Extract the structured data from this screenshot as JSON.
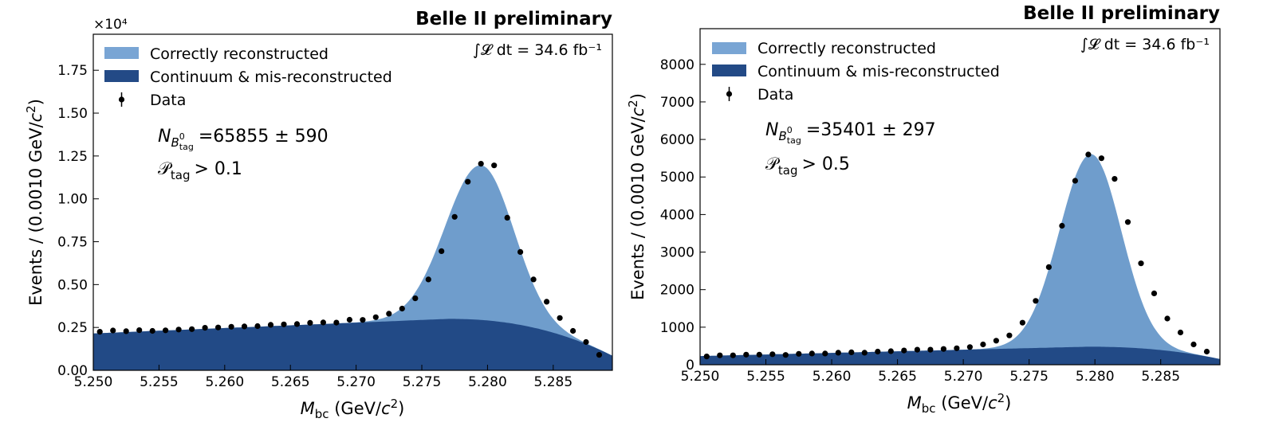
{
  "chart_data": [
    {
      "type": "area",
      "title": "Belle II preliminary",
      "luminosity_text": "∫𝓛 dt = 34.6 fb⁻¹",
      "xlabel": "M_bc (GeV/c²)",
      "ylabel": "Events / (0.0010 GeV/c²)",
      "xlim": [
        5.25,
        5.2895
      ],
      "ylim": [
        0,
        19600
      ],
      "y_tick_values": [
        0,
        2500,
        5000,
        7500,
        10000,
        12500,
        15000,
        17500
      ],
      "y_tick_labels": [
        "0.00",
        "0.25",
        "0.50",
        "0.75",
        "1.00",
        "1.25",
        "1.50",
        "1.75"
      ],
      "y_multiplier_label": "×10⁴",
      "x_tick_values": [
        5.25,
        5.255,
        5.26,
        5.265,
        5.27,
        5.275,
        5.28,
        5.285
      ],
      "x_tick_labels": [
        "5.250",
        "5.255",
        "5.260",
        "5.265",
        "5.270",
        "5.275",
        "5.280",
        "5.285"
      ],
      "legend": [
        "Correctly reconstructed",
        "Continuum & mis-reconstructed",
        "Data"
      ],
      "annotations": {
        "yield_symbol": "N",
        "yield_sub": "B",
        "yield_sup": "0",
        "yield_subsub": "tag",
        "yield_value": "=65855 ± 590",
        "cut_symbol": "𝒫",
        "cut_sub": "tag",
        "cut_value": "> 0.1"
      },
      "background_model": {
        "start": 2150,
        "peak": 3000,
        "peak_x": 5.277,
        "drop_scale": 2150
      },
      "signal_model": {
        "amplitude": 9020,
        "mean": 5.2795,
        "sigma_left": 0.0027,
        "sigma_right": 0.0025
      },
      "series": [
        {
          "name": "Data",
          "x": [
            5.2505,
            5.2515,
            5.2525,
            5.2535,
            5.2545,
            5.2555,
            5.2565,
            5.2575,
            5.2585,
            5.2595,
            5.2605,
            5.2615,
            5.2625,
            5.2635,
            5.2645,
            5.2655,
            5.2665,
            5.2675,
            5.2685,
            5.2695,
            5.2705,
            5.2715,
            5.2725,
            5.2735,
            5.2745,
            5.2755,
            5.2765,
            5.2775,
            5.2785,
            5.2795,
            5.2805,
            5.2815,
            5.2825,
            5.2835,
            5.2845,
            5.2855,
            5.2865,
            5.2875,
            5.2885
          ],
          "y": [
            2250,
            2320,
            2280,
            2340,
            2300,
            2330,
            2380,
            2400,
            2480,
            2500,
            2540,
            2560,
            2580,
            2650,
            2680,
            2700,
            2770,
            2790,
            2780,
            2950,
            2940,
            3100,
            3300,
            3600,
            4200,
            5300,
            6950,
            8950,
            11000,
            12050,
            11950,
            8900,
            6900,
            5300,
            4000,
            3050,
            2300,
            1650,
            900
          ]
        }
      ]
    },
    {
      "type": "area",
      "title": "Belle II preliminary",
      "luminosity_text": "∫𝓛 dt = 34.6 fb⁻¹",
      "xlabel": "M_bc (GeV/c²)",
      "ylabel": "Events / (0.0010 GeV/c²)",
      "xlim": [
        5.25,
        5.2895
      ],
      "ylim": [
        0,
        8950
      ],
      "y_tick_values": [
        0,
        1000,
        2000,
        3000,
        4000,
        5000,
        6000,
        7000,
        8000
      ],
      "y_tick_labels": [
        "0",
        "1000",
        "2000",
        "3000",
        "4000",
        "5000",
        "6000",
        "7000",
        "8000"
      ],
      "y_multiplier_label": "",
      "x_tick_values": [
        5.25,
        5.255,
        5.26,
        5.265,
        5.27,
        5.275,
        5.28,
        5.285
      ],
      "x_tick_labels": [
        "5.250",
        "5.255",
        "5.260",
        "5.265",
        "5.270",
        "5.275",
        "5.280",
        "5.285"
      ],
      "legend": [
        "Correctly reconstructed",
        "Continuum & mis-reconstructed",
        "Data"
      ],
      "annotations": {
        "yield_symbol": "N",
        "yield_sub": "B",
        "yield_sup": "0",
        "yield_subsub": "tag",
        "yield_value": "=35401 ± 297",
        "cut_symbol": "𝒫",
        "cut_sub": "tag",
        "cut_value": "> 0.5"
      },
      "background_model": {
        "start": 230,
        "peak": 480,
        "peak_x": 5.2795,
        "drop_scale": 330
      },
      "signal_model": {
        "amplitude": 5130,
        "mean": 5.2797,
        "sigma_left": 0.0024,
        "sigma_right": 0.0023
      },
      "series": [
        {
          "name": "Data",
          "x": [
            5.2505,
            5.2515,
            5.2525,
            5.2535,
            5.2545,
            5.2555,
            5.2565,
            5.2575,
            5.2585,
            5.2595,
            5.2605,
            5.2615,
            5.2625,
            5.2635,
            5.2645,
            5.2655,
            5.2665,
            5.2675,
            5.2685,
            5.2695,
            5.2705,
            5.2715,
            5.2725,
            5.2735,
            5.2745,
            5.2755,
            5.2765,
            5.2775,
            5.2785,
            5.2795,
            5.2805,
            5.2815,
            5.2825,
            5.2835,
            5.2845,
            5.2855,
            5.2865,
            5.2875,
            5.2885
          ],
          "y": [
            220,
            250,
            250,
            270,
            270,
            280,
            260,
            290,
            300,
            300,
            320,
            330,
            320,
            350,
            360,
            380,
            400,
            400,
            420,
            440,
            470,
            540,
            640,
            780,
            1120,
            1700,
            2600,
            3700,
            4900,
            5600,
            5500,
            4950,
            3800,
            2700,
            1900,
            1230,
            860,
            540,
            350
          ]
        }
      ]
    }
  ],
  "colors": {
    "signal": "#6f9dcc",
    "background": "#224a86",
    "data": "#000000",
    "legend_signal": "#79a5d4",
    "legend_background": "#234a86"
  }
}
